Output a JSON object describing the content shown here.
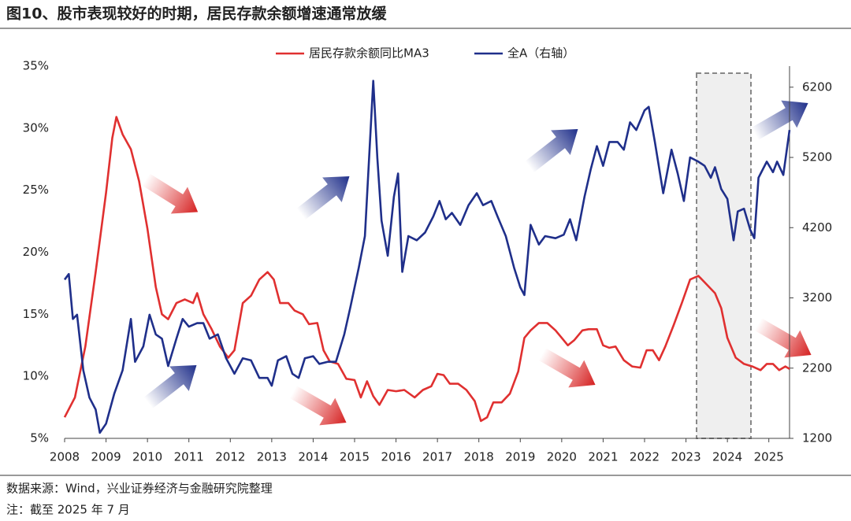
{
  "chart_data": {
    "type": "line",
    "title": "图10、股市表现较好的时期，居民存款余额增速通常放缓",
    "source": "数据来源：Wind，兴业证券经济与金融研究院整理",
    "note": "注：截至 2025 年 7 月",
    "xlim": [
      2008,
      2025.5
    ],
    "xticks": [
      2008,
      2009,
      2010,
      2011,
      2012,
      2013,
      2014,
      2015,
      2016,
      2017,
      2018,
      2019,
      2020,
      2021,
      2022,
      2023,
      2024,
      2025
    ],
    "ylim": [
      5,
      35
    ],
    "yticks": [
      {
        "value": 5,
        "label": "5%"
      },
      {
        "value": 10,
        "label": "10%"
      },
      {
        "value": 15,
        "label": "15%"
      },
      {
        "value": 20,
        "label": "20%"
      },
      {
        "value": 25,
        "label": "25%"
      },
      {
        "value": 30,
        "label": "30%"
      },
      {
        "value": 35,
        "label": "35%"
      }
    ],
    "y2lim": [
      1200,
      6500
    ],
    "y2ticks": [
      1200,
      2200,
      3200,
      4200,
      5200,
      6200
    ],
    "series": [
      {
        "name": "居民存款余额同比MA3",
        "color": "#e03030",
        "x": [
          2008.0,
          2008.25,
          2008.5,
          2008.75,
          2009.0,
          2009.15,
          2009.25,
          2009.4,
          2009.6,
          2009.8,
          2010.0,
          2010.2,
          2010.35,
          2010.5,
          2010.7,
          2010.9,
          2011.1,
          2011.2,
          2011.35,
          2011.55,
          2011.75,
          2011.95,
          2012.1,
          2012.3,
          2012.5,
          2012.7,
          2012.9,
          2013.05,
          2013.2,
          2013.4,
          2013.55,
          2013.75,
          2013.9,
          2014.1,
          2014.25,
          2014.4,
          2014.6,
          2014.8,
          2015.0,
          2015.15,
          2015.3,
          2015.45,
          2015.6,
          2015.8,
          2016.0,
          2016.2,
          2016.45,
          2016.65,
          2016.85,
          2017.0,
          2017.15,
          2017.3,
          2017.5,
          2017.7,
          2017.9,
          2018.05,
          2018.2,
          2018.35,
          2018.55,
          2018.75,
          2018.95,
          2019.1,
          2019.25,
          2019.45,
          2019.65,
          2019.85,
          2020.0,
          2020.15,
          2020.3,
          2020.5,
          2020.65,
          2020.85,
          2021.0,
          2021.15,
          2021.3,
          2021.5,
          2021.7,
          2021.9,
          2022.05,
          2022.2,
          2022.35,
          2022.5,
          2022.7,
          2022.9,
          2023.1,
          2023.3,
          2023.5,
          2023.7,
          2023.85,
          2024.0,
          2024.2,
          2024.4,
          2024.6,
          2024.8,
          2024.95,
          2025.1,
          2025.25,
          2025.4,
          2025.5
        ],
        "values": [
          6.7,
          8.3,
          12.4,
          18.4,
          24.8,
          29.2,
          30.9,
          29.5,
          28.3,
          25.7,
          21.9,
          17.2,
          15.0,
          14.6,
          15.9,
          16.2,
          15.9,
          16.7,
          15.0,
          13.8,
          12.4,
          11.5,
          12.1,
          15.9,
          16.5,
          17.8,
          18.4,
          17.8,
          15.9,
          15.9,
          15.3,
          15.0,
          14.2,
          14.3,
          12.1,
          11.2,
          11.0,
          9.8,
          9.7,
          8.3,
          9.6,
          8.4,
          7.7,
          8.9,
          8.8,
          8.9,
          8.3,
          8.9,
          9.2,
          10.2,
          10.1,
          9.4,
          9.4,
          8.9,
          8.0,
          6.4,
          6.7,
          7.9,
          7.9,
          8.6,
          10.4,
          13.1,
          13.7,
          14.3,
          14.3,
          13.7,
          13.1,
          12.5,
          12.9,
          13.7,
          13.8,
          13.8,
          12.5,
          12.3,
          12.4,
          11.3,
          10.8,
          10.7,
          12.1,
          12.1,
          11.3,
          12.4,
          14.1,
          15.9,
          17.8,
          18.1,
          17.4,
          16.7,
          15.5,
          13.1,
          11.5,
          11.0,
          10.8,
          10.5,
          11.0,
          11.0,
          10.5,
          10.8,
          10.6
        ]
      },
      {
        "name": "全A（右轴）",
        "color": "#1f2f8a",
        "axis": "y2",
        "x": [
          2008.0,
          2008.1,
          2008.2,
          2008.3,
          2008.45,
          2008.6,
          2008.75,
          2008.85,
          2009.0,
          2009.2,
          2009.4,
          2009.6,
          2009.7,
          2009.9,
          2010.05,
          2010.2,
          2010.35,
          2010.5,
          2010.7,
          2010.85,
          2011.0,
          2011.2,
          2011.35,
          2011.5,
          2011.7,
          2011.9,
          2012.1,
          2012.3,
          2012.5,
          2012.7,
          2012.9,
          2013.0,
          2013.15,
          2013.35,
          2013.5,
          2013.65,
          2013.8,
          2014.0,
          2014.15,
          2014.35,
          2014.55,
          2014.75,
          2014.9,
          2015.1,
          2015.25,
          2015.45,
          2015.55,
          2015.65,
          2015.8,
          2015.95,
          2016.05,
          2016.15,
          2016.3,
          2016.5,
          2016.7,
          2016.9,
          2017.05,
          2017.2,
          2017.35,
          2017.55,
          2017.75,
          2017.95,
          2018.1,
          2018.3,
          2018.45,
          2018.65,
          2018.85,
          2019.0,
          2019.1,
          2019.25,
          2019.45,
          2019.6,
          2019.85,
          2020.05,
          2020.2,
          2020.35,
          2020.55,
          2020.7,
          2020.85,
          2021.0,
          2021.15,
          2021.35,
          2021.5,
          2021.65,
          2021.8,
          2022.0,
          2022.1,
          2022.25,
          2022.45,
          2022.65,
          2022.8,
          2022.95,
          2023.1,
          2023.3,
          2023.45,
          2023.6,
          2023.7,
          2023.85,
          2024.0,
          2024.15,
          2024.25,
          2024.4,
          2024.55,
          2024.65,
          2024.75,
          2024.95,
          2025.1,
          2025.2,
          2025.35,
          2025.5
        ],
        "values": [
          3460,
          3540,
          2900,
          2960,
          2170,
          1780,
          1610,
          1280,
          1410,
          1840,
          2170,
          2900,
          2290,
          2510,
          2960,
          2680,
          2620,
          2230,
          2620,
          2900,
          2790,
          2840,
          2840,
          2620,
          2680,
          2340,
          2120,
          2340,
          2310,
          2060,
          2060,
          1950,
          2310,
          2370,
          2120,
          2060,
          2340,
          2370,
          2260,
          2290,
          2290,
          2680,
          3070,
          3630,
          4080,
          6290,
          5190,
          4300,
          3800,
          4640,
          4970,
          3570,
          4080,
          4020,
          4130,
          4360,
          4580,
          4320,
          4410,
          4240,
          4520,
          4690,
          4520,
          4580,
          4360,
          4080,
          3630,
          3350,
          3240,
          4240,
          3960,
          4080,
          4050,
          4100,
          4320,
          4020,
          4640,
          5030,
          5360,
          5080,
          5420,
          5420,
          5310,
          5700,
          5590,
          5870,
          5920,
          5420,
          4690,
          5310,
          4970,
          4580,
          5200,
          5140,
          5080,
          4910,
          5060,
          4750,
          4610,
          4020,
          4430,
          4470,
          4170,
          4050,
          4910,
          5140,
          4990,
          5140,
          4950,
          5590
        ]
      }
    ]
  }
}
